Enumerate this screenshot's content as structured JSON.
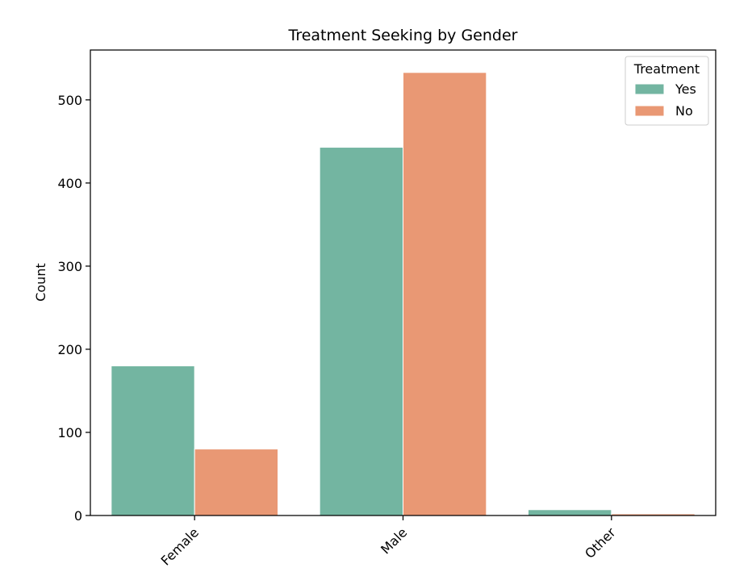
{
  "chart_data": {
    "type": "bar",
    "title": "Treatment Seeking by Gender",
    "xlabel": "",
    "ylabel": "Count",
    "categories": [
      "Female",
      "Male",
      "Other"
    ],
    "series": [
      {
        "name": "Yes",
        "values": [
          180,
          443,
          7
        ],
        "color": "#73b5a1"
      },
      {
        "name": "No",
        "values": [
          80,
          533,
          2
        ],
        "color": "#e99874"
      }
    ],
    "ylim": [
      0,
      560
    ],
    "yticks": [
      0,
      100,
      200,
      300,
      400,
      500
    ],
    "legend": {
      "title": "Treatment",
      "placement": "top-right"
    },
    "grid": false
  }
}
